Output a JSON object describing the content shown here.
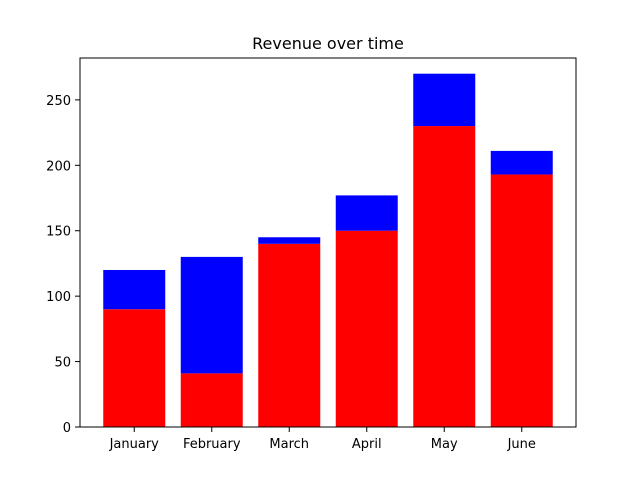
{
  "chart_data": {
    "type": "bar",
    "stacked": true,
    "title": "Revenue over time",
    "xlabel": "",
    "ylabel": "",
    "categories": [
      "January",
      "February",
      "March",
      "April",
      "May",
      "June"
    ],
    "series": [
      {
        "color": "#ff0000",
        "values": [
          90,
          41,
          140,
          150,
          230,
          193
        ]
      },
      {
        "color": "#0000ff",
        "values": [
          30,
          89,
          5,
          27,
          40,
          18
        ]
      }
    ],
    "ylim": [
      0,
      282
    ],
    "yticks": [
      0,
      50,
      100,
      150,
      200,
      250
    ],
    "grid": false,
    "legend": "none"
  }
}
